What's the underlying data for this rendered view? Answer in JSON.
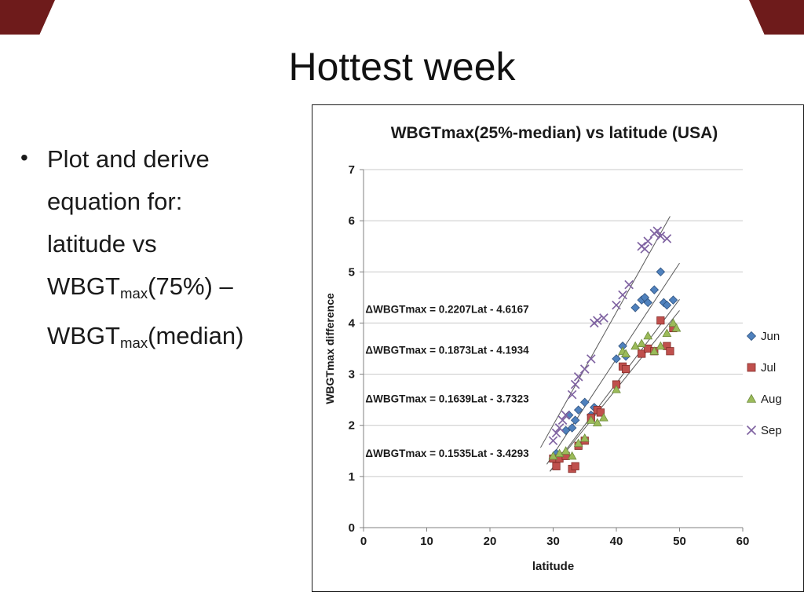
{
  "slide": {
    "title": "Hottest week",
    "accent_color": "#6E1B1B",
    "bullet": {
      "marker": "•",
      "segments": [
        {
          "text": "Plot and derive equation for: latitude vs WBGT",
          "sub": false
        },
        {
          "text": "max",
          "sub": true
        },
        {
          "text": "(75%) – WBGT",
          "sub": false
        },
        {
          "text": "max",
          "sub": true
        },
        {
          "text": "(median)",
          "sub": false
        }
      ]
    }
  },
  "chart_data": {
    "type": "scatter",
    "title": "WBGTmax(25%-median) vs latitude (USA)",
    "xlabel": "latitude",
    "ylabel": "WBGTmax difference",
    "xlim": [
      0,
      60
    ],
    "ylim": [
      0,
      7
    ],
    "xticks": [
      0,
      10,
      20,
      30,
      40,
      50,
      60
    ],
    "yticks": [
      0,
      1,
      2,
      3,
      4,
      5,
      6,
      7
    ],
    "grid": true,
    "legend_position": "right",
    "series": [
      {
        "name": "Jun",
        "marker": "diamond",
        "color": "#4F81BD",
        "edge": "#31537F",
        "points": [
          [
            30,
            1.35
          ],
          [
            30.5,
            1.45
          ],
          [
            31,
            1.4
          ],
          [
            32,
            1.9
          ],
          [
            32.5,
            2.2
          ],
          [
            33,
            1.95
          ],
          [
            33.5,
            2.1
          ],
          [
            34,
            2.3
          ],
          [
            35,
            2.45
          ],
          [
            36,
            2.2
          ],
          [
            36.5,
            2.35
          ],
          [
            37,
            2.3
          ],
          [
            40,
            3.3
          ],
          [
            41,
            3.55
          ],
          [
            41.5,
            3.35
          ],
          [
            43,
            4.3
          ],
          [
            44,
            4.45
          ],
          [
            44.5,
            4.5
          ],
          [
            45,
            4.4
          ],
          [
            46,
            4.65
          ],
          [
            47,
            5.0
          ],
          [
            47.5,
            4.4
          ],
          [
            48,
            4.35
          ],
          [
            49,
            4.45
          ]
        ]
      },
      {
        "name": "Jul",
        "marker": "square",
        "color": "#C0504D",
        "edge": "#832C28",
        "points": [
          [
            30,
            1.35
          ],
          [
            30.5,
            1.2
          ],
          [
            31,
            1.35
          ],
          [
            32,
            1.4
          ],
          [
            33,
            1.15
          ],
          [
            33.5,
            1.2
          ],
          [
            34,
            1.6
          ],
          [
            35,
            1.7
          ],
          [
            36,
            2.15
          ],
          [
            37,
            2.3
          ],
          [
            37.5,
            2.25
          ],
          [
            40,
            2.8
          ],
          [
            41,
            3.15
          ],
          [
            41.5,
            3.1
          ],
          [
            44,
            3.4
          ],
          [
            45,
            3.5
          ],
          [
            46,
            3.45
          ],
          [
            47,
            4.05
          ],
          [
            48,
            3.55
          ],
          [
            48.5,
            3.45
          ],
          [
            49,
            3.9
          ]
        ]
      },
      {
        "name": "Aug",
        "marker": "triangle",
        "color": "#9BBB59",
        "edge": "#6E8B3D",
        "points": [
          [
            30,
            1.4
          ],
          [
            31,
            1.45
          ],
          [
            32,
            1.5
          ],
          [
            33,
            1.4
          ],
          [
            34,
            1.65
          ],
          [
            35,
            1.75
          ],
          [
            36,
            2.1
          ],
          [
            37,
            2.05
          ],
          [
            38,
            2.15
          ],
          [
            40,
            2.7
          ],
          [
            41,
            3.45
          ],
          [
            41.5,
            3.4
          ],
          [
            43,
            3.55
          ],
          [
            44,
            3.6
          ],
          [
            45,
            3.75
          ],
          [
            46,
            3.45
          ],
          [
            47,
            3.55
          ],
          [
            48,
            3.8
          ],
          [
            49,
            4.0
          ],
          [
            49.5,
            3.9
          ]
        ]
      },
      {
        "name": "Sep",
        "marker": "x",
        "color": "#8064A2",
        "edge": "#8064A2",
        "points": [
          [
            30,
            1.7
          ],
          [
            30.5,
            1.85
          ],
          [
            31,
            1.95
          ],
          [
            31.5,
            2.1
          ],
          [
            32,
            2.2
          ],
          [
            33,
            2.6
          ],
          [
            33.5,
            2.8
          ],
          [
            34,
            2.95
          ],
          [
            35,
            3.1
          ],
          [
            36,
            3.3
          ],
          [
            36.5,
            4.0
          ],
          [
            37,
            4.05
          ],
          [
            38,
            4.1
          ],
          [
            40,
            4.35
          ],
          [
            41,
            4.55
          ],
          [
            42,
            4.75
          ],
          [
            44,
            5.5
          ],
          [
            44.5,
            5.45
          ],
          [
            45,
            5.6
          ],
          [
            46,
            5.75
          ],
          [
            46.5,
            5.8
          ],
          [
            47,
            5.7
          ],
          [
            48,
            5.65
          ]
        ]
      }
    ],
    "trendlines": [
      {
        "slope": 0.2207,
        "intercept": -4.6167,
        "x_range": [
          28,
          48.5
        ]
      },
      {
        "slope": 0.1873,
        "intercept": -4.1934,
        "x_range": [
          29,
          50
        ]
      },
      {
        "slope": 0.1639,
        "intercept": -3.7323,
        "x_range": [
          29.5,
          50
        ]
      },
      {
        "slope": 0.1535,
        "intercept": -3.4293,
        "x_range": [
          29.5,
          50
        ]
      }
    ],
    "equation_labels": [
      {
        "text": "ΔWBGTmax = 0.2207Lat - 4.6167",
        "x": 0.3,
        "y": 4.2
      },
      {
        "text": "ΔWBGTmax  = 0.1873Lat - 4.1934",
        "x": 0.3,
        "y": 3.4
      },
      {
        "text": "ΔWBGTmax  = 0.1639Lat - 3.7323",
        "x": 0.3,
        "y": 2.45
      },
      {
        "text": "ΔWBGTmax  = 0.1535Lat - 3.4293",
        "x": 0.3,
        "y": 1.38
      }
    ]
  }
}
